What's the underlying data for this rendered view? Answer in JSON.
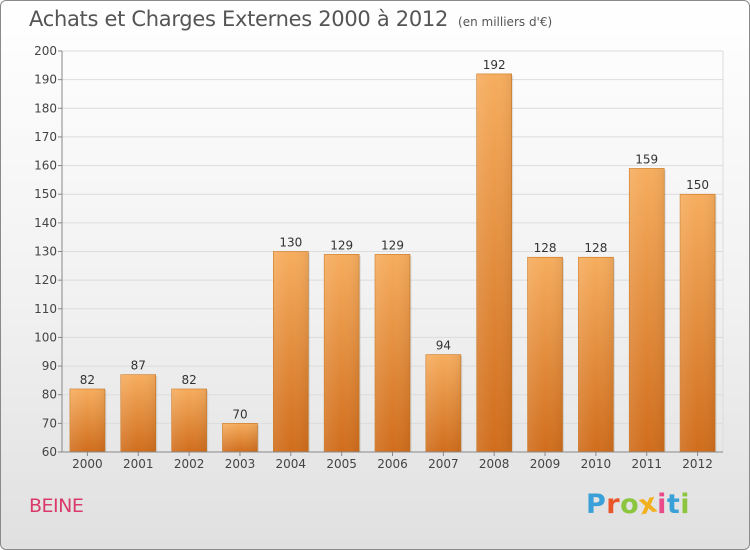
{
  "header": {
    "title": "Achats et Charges Externes 2000 à 2012",
    "unit": "(en milliers d'€)"
  },
  "footer": {
    "commune": "BEINE",
    "logo": {
      "text": "Proxiti",
      "letters": [
        "P",
        "r",
        "o",
        "x",
        "i",
        "t",
        "i"
      ],
      "colors": [
        "#3aa0d8",
        "#e8562a",
        "#8cc63e",
        "#f2b01e",
        "#e84a8a",
        "#3aa0d8",
        "#8cc63e"
      ]
    }
  },
  "colors": {
    "bar_light": "#f6ad5e",
    "bar_dark": "#d06d1c",
    "label": "#333333"
  },
  "chart_data": {
    "type": "bar",
    "title": "Achats et Charges Externes 2000 à 2012",
    "subtitle": "(en milliers d'€)",
    "xlabel": "",
    "ylabel": "",
    "categories": [
      "2000",
      "2001",
      "2002",
      "2003",
      "2004",
      "2005",
      "2006",
      "2007",
      "2008",
      "2009",
      "2010",
      "2011",
      "2012"
    ],
    "values": [
      82,
      87,
      82,
      70,
      130,
      129,
      129,
      94,
      192,
      128,
      128,
      159,
      150
    ],
    "data_labels": [
      "82",
      "87",
      "82",
      "70",
      "130",
      "129",
      "129",
      "94",
      "192",
      "128",
      "128",
      "159",
      "150"
    ],
    "ylim": [
      60,
      200
    ],
    "y_ticks": [
      60,
      70,
      80,
      90,
      100,
      110,
      120,
      130,
      140,
      150,
      160,
      170,
      180,
      190,
      200
    ],
    "y_tick_labels": [
      "60",
      "70",
      "80",
      "90",
      "100",
      "110",
      "120",
      "130",
      "140",
      "150",
      "160",
      "170",
      "180",
      "190",
      "200"
    ],
    "grid": true,
    "legend": "none"
  }
}
